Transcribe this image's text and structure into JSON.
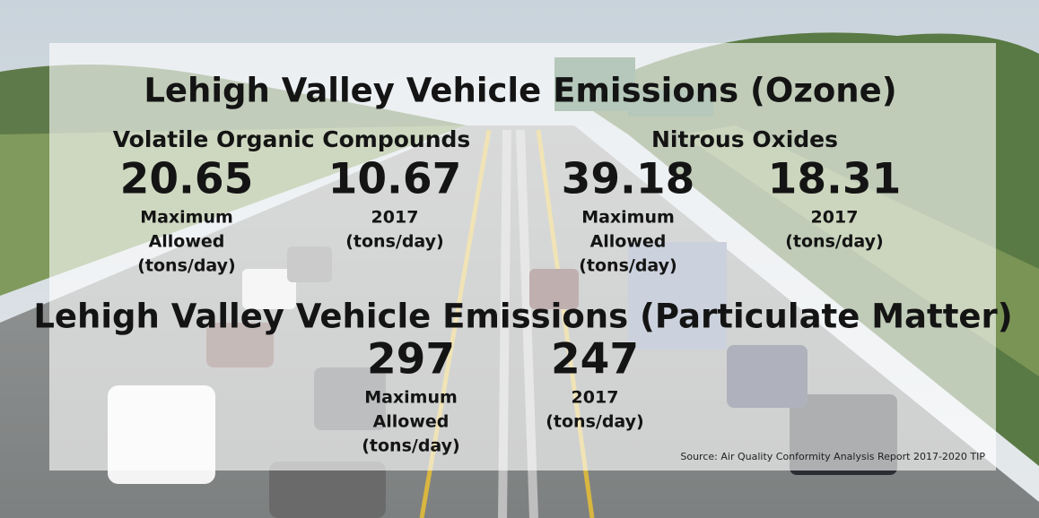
{
  "ozone": {
    "title": "Lehigh Valley Vehicle Emissions (Ozone)",
    "groups": [
      {
        "heading": "Volatile Organic Compounds",
        "stats": [
          {
            "value": 20.65,
            "label_lines": [
              "Maximum",
              "Allowed",
              "(tons/day)"
            ]
          },
          {
            "value": 10.67,
            "label_lines": [
              "2017",
              "(tons/day)"
            ]
          }
        ]
      },
      {
        "heading": "Nitrous Oxides",
        "stats": [
          {
            "value": 39.18,
            "label_lines": [
              "Maximum",
              "Allowed",
              "(tons/day)"
            ]
          },
          {
            "value": 18.31,
            "label_lines": [
              "2017",
              "(tons/day)"
            ]
          }
        ]
      }
    ]
  },
  "particulate": {
    "title": "Lehigh Valley Vehicle Emissions (Particulate Matter)",
    "stats": [
      {
        "value": 297,
        "label_lines": [
          "Maximum",
          "Allowed",
          "(tons/day)"
        ]
      },
      {
        "value": 247,
        "label_lines": [
          "2017",
          "(tons/day)"
        ]
      }
    ]
  },
  "source": "Source: Air Quality Conformity Analysis Report 2017-2020 TIP"
}
